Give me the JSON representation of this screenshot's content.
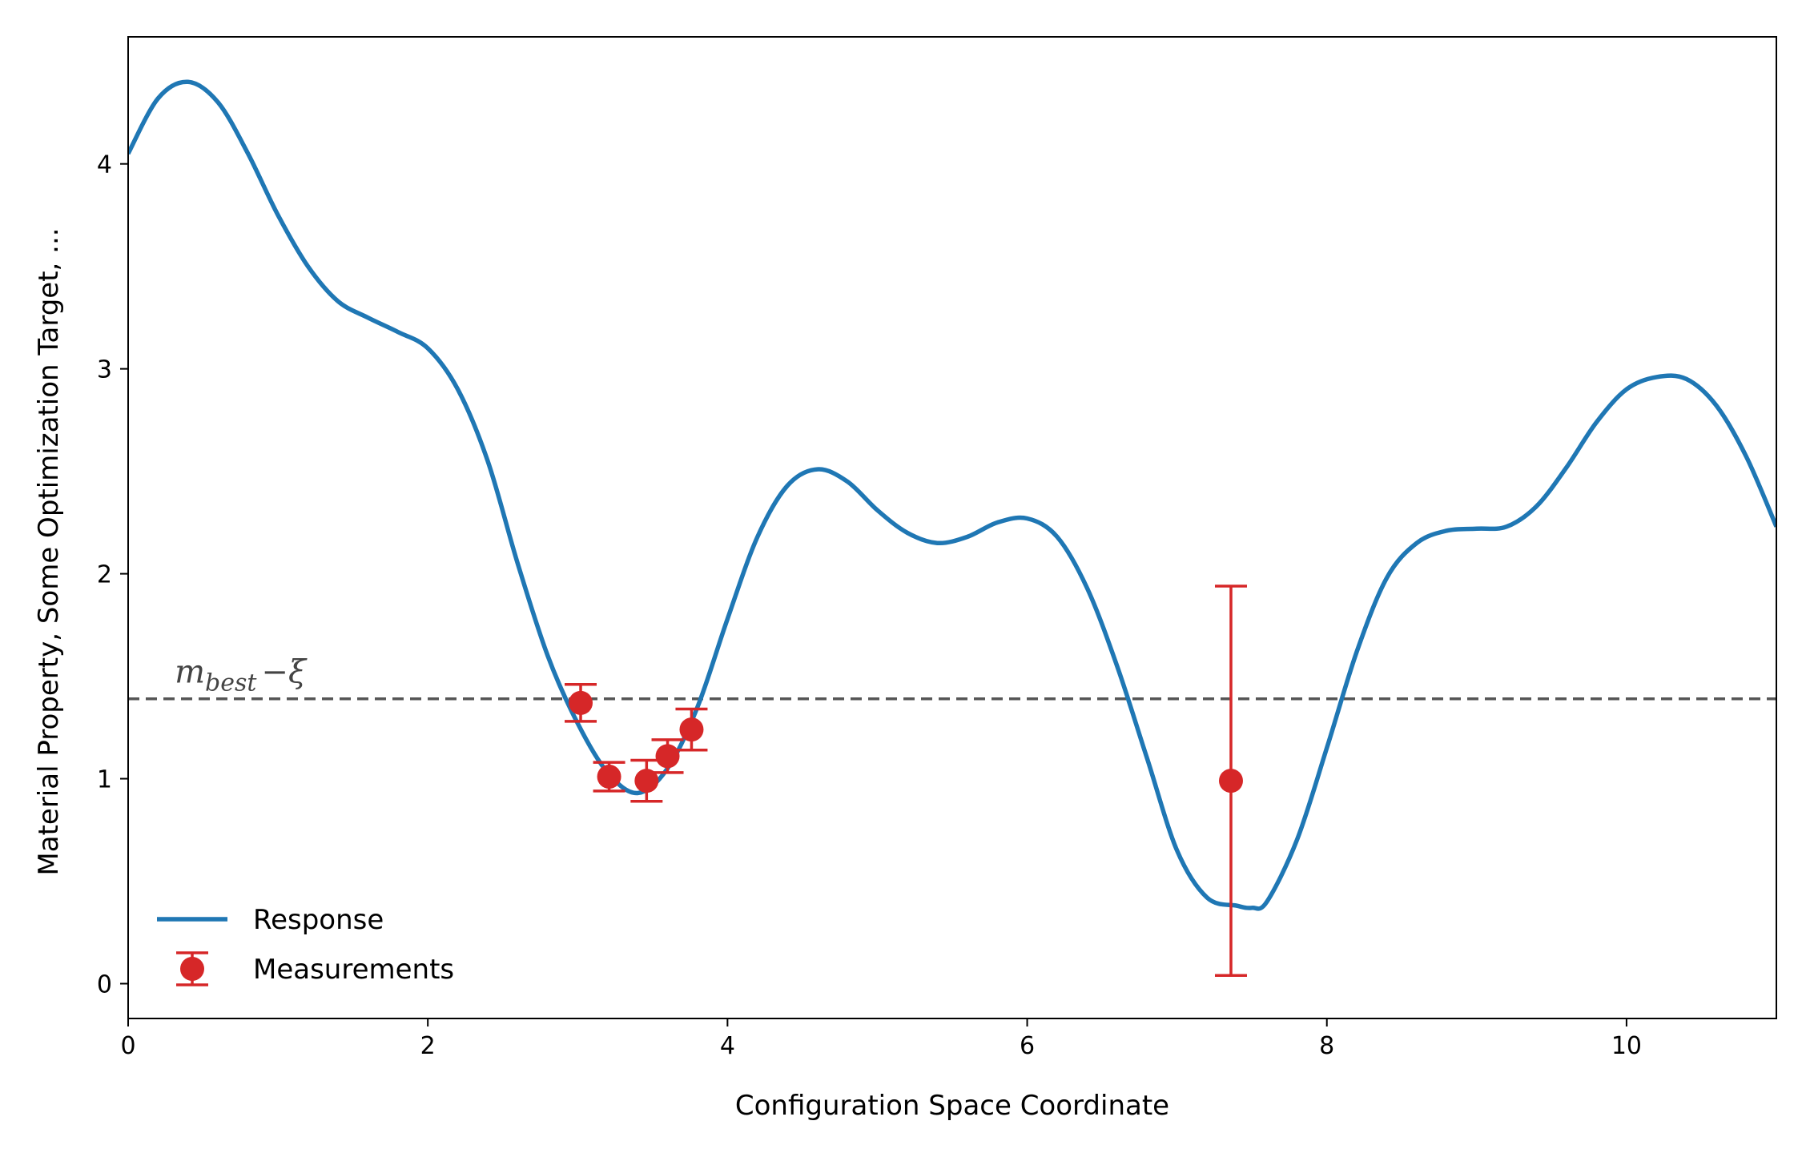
{
  "chart_data": {
    "type": "line",
    "xlabel": "Configuration Space Coordinate",
    "ylabel": "Material Property, Some Optimization Target, ...",
    "xlim": [
      0,
      11
    ],
    "ylim": [
      -0.17,
      4.62
    ],
    "x_ticks": [
      0,
      2,
      4,
      6,
      8,
      10
    ],
    "y_ticks": [
      0,
      1,
      2,
      3,
      4
    ],
    "grid": false,
    "legend_position": "lower-left",
    "series": [
      {
        "name": "Response",
        "type": "line",
        "color": "#1f77b4",
        "x": [
          0,
          0.2,
          0.4,
          0.6,
          0.8,
          1.0,
          1.2,
          1.4,
          1.6,
          1.8,
          2.0,
          2.2,
          2.4,
          2.6,
          2.8,
          3.0,
          3.2,
          3.4,
          3.6,
          3.8,
          4.0,
          4.2,
          4.4,
          4.6,
          4.8,
          5.0,
          5.2,
          5.4,
          5.6,
          5.8,
          6.0,
          6.2,
          6.4,
          6.6,
          6.8,
          7.0,
          7.2,
          7.4,
          7.5,
          7.6,
          7.8,
          8.0,
          8.2,
          8.4,
          8.6,
          8.8,
          9.0,
          9.2,
          9.4,
          9.6,
          9.8,
          10.0,
          10.2,
          10.4,
          10.6,
          10.8,
          11.0
        ],
        "y": [
          4.05,
          4.32,
          4.4,
          4.3,
          4.05,
          3.75,
          3.5,
          3.33,
          3.25,
          3.18,
          3.1,
          2.9,
          2.55,
          2.05,
          1.6,
          1.27,
          1.03,
          0.93,
          1.05,
          1.35,
          1.78,
          2.18,
          2.43,
          2.51,
          2.45,
          2.31,
          2.2,
          2.15,
          2.18,
          2.25,
          2.27,
          2.18,
          1.93,
          1.55,
          1.1,
          0.65,
          0.42,
          0.38,
          0.37,
          0.4,
          0.7,
          1.15,
          1.62,
          1.98,
          2.15,
          2.21,
          2.22,
          2.23,
          2.33,
          2.52,
          2.74,
          2.9,
          2.96,
          2.95,
          2.82,
          2.57,
          2.23
        ]
      },
      {
        "name": "Measurements",
        "type": "errorbar",
        "color": "#d62728",
        "x": [
          3.02,
          3.21,
          3.46,
          3.6,
          3.76,
          7.36
        ],
        "y": [
          1.37,
          1.01,
          0.99,
          1.11,
          1.24,
          0.99
        ],
        "yerr": [
          0.09,
          0.07,
          0.1,
          0.08,
          0.1,
          0.95
        ]
      }
    ],
    "reference_line": {
      "y": 1.39,
      "style": "dashed",
      "color": "#555555",
      "label": "m_best − ξ",
      "label_main": "m",
      "label_sub": "best",
      "label_rest": "−ξ",
      "label_x": 0.15
    }
  }
}
